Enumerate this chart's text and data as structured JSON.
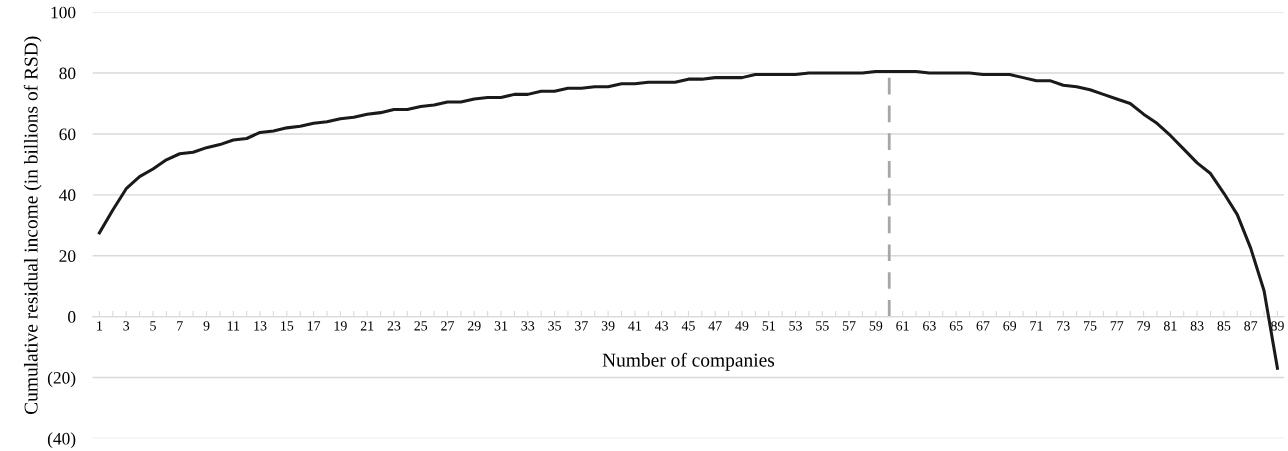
{
  "chart_data": {
    "type": "line",
    "xlabel": "Number of companies",
    "ylabel": "Cumulative residual income (in billions of RSD)",
    "x": [
      1,
      2,
      3,
      4,
      5,
      6,
      7,
      8,
      9,
      10,
      11,
      12,
      13,
      14,
      15,
      16,
      17,
      18,
      19,
      20,
      21,
      22,
      23,
      24,
      25,
      26,
      27,
      28,
      29,
      30,
      31,
      32,
      33,
      34,
      35,
      36,
      37,
      38,
      39,
      40,
      41,
      42,
      43,
      44,
      45,
      46,
      47,
      48,
      49,
      50,
      51,
      52,
      53,
      54,
      55,
      56,
      57,
      58,
      59,
      60,
      61,
      62,
      63,
      64,
      65,
      66,
      67,
      68,
      69,
      70,
      71,
      72,
      73,
      74,
      75,
      76,
      77,
      78,
      79,
      80,
      81,
      82,
      83,
      84,
      85,
      86,
      87,
      88,
      89
    ],
    "series": [
      {
        "color": "#1a1a1a",
        "values": [
          27.5,
          35,
          42,
          46,
          48.5,
          51.5,
          53.5,
          54,
          55.5,
          56.5,
          58,
          58.5,
          60.5,
          61,
          62,
          62.5,
          63.5,
          64,
          65,
          65.5,
          66.5,
          67,
          68,
          68,
          69,
          69.5,
          70.5,
          70.5,
          71.5,
          72,
          72,
          73,
          73,
          74,
          74,
          75,
          75,
          75.5,
          75.5,
          76.5,
          76.5,
          77,
          77,
          77,
          78,
          78,
          78.5,
          78.5,
          78.5,
          79.5,
          79.5,
          79.5,
          79.5,
          80,
          80,
          80,
          80,
          80,
          80.5,
          80.5,
          80.5,
          80.5,
          80,
          80,
          80,
          80,
          79.5,
          79.5,
          79.5,
          78.5,
          77.5,
          77.5,
          76,
          75.5,
          74.5,
          73,
          71.5,
          70,
          66.5,
          63.5,
          59.5,
          55,
          50.5,
          47,
          40.5,
          33.5,
          22.5,
          8.5,
          -17
        ]
      }
    ],
    "xlim": [
      0.5,
      89.5
    ],
    "xticks": [
      1,
      {
        "value": 2,
        "label": null
      },
      3,
      {
        "value": 4,
        "label": null
      },
      5,
      {
        "value": 6,
        "label": null
      },
      7,
      {
        "value": 8,
        "label": null
      },
      9,
      {
        "value": 10,
        "label": null
      },
      11,
      {
        "value": 12,
        "label": null
      },
      13,
      {
        "value": 14,
        "label": null
      },
      15,
      {
        "value": 16,
        "label": null
      },
      17,
      {
        "value": 18,
        "label": null
      },
      19,
      {
        "value": 20,
        "label": null
      },
      21,
      {
        "value": 22,
        "label": null
      },
      23,
      {
        "value": 24,
        "label": null
      },
      25,
      {
        "value": 26,
        "label": null
      },
      27,
      {
        "value": 28,
        "label": null
      },
      29,
      {
        "value": 30,
        "label": null
      },
      31,
      {
        "value": 32,
        "label": null
      },
      33,
      {
        "value": 34,
        "label": null
      },
      35,
      {
        "value": 36,
        "label": null
      },
      37,
      {
        "value": 38,
        "label": null
      },
      39,
      {
        "value": 40,
        "label": null
      },
      41,
      {
        "value": 42,
        "label": null
      },
      43,
      {
        "value": 44,
        "label": null
      },
      45,
      {
        "value": 46,
        "label": null
      },
      47,
      {
        "value": 48,
        "label": null
      },
      49,
      {
        "value": 50,
        "label": null
      },
      51,
      {
        "value": 52,
        "label": null
      },
      53,
      {
        "value": 54,
        "label": null
      },
      55,
      {
        "value": 56,
        "label": null
      },
      57,
      {
        "value": 58,
        "label": null
      },
      59,
      {
        "value": 60,
        "label": null
      },
      61,
      {
        "value": 62,
        "label": null
      },
      63,
      {
        "value": 64,
        "label": null
      },
      65,
      {
        "value": 66,
        "label": null
      },
      67,
      {
        "value": 68,
        "label": null
      },
      69,
      {
        "value": 70,
        "label": null
      },
      71,
      {
        "value": 72,
        "label": null
      },
      73,
      {
        "value": 74,
        "label": null
      },
      75,
      {
        "value": 76,
        "label": null
      },
      77,
      {
        "value": 78,
        "label": null
      },
      79,
      {
        "value": 80,
        "label": null
      },
      81,
      {
        "value": 82,
        "label": null
      },
      83,
      {
        "value": 84,
        "label": null
      },
      85,
      {
        "value": 86,
        "label": null
      },
      87,
      {
        "value": 88,
        "label": null
      },
      89
    ],
    "ylim": [
      -40,
      100
    ],
    "yticks": [
      {
        "value": -40,
        "label": "(40)"
      },
      {
        "value": -20,
        "label": "(20)"
      },
      0,
      20,
      40,
      60,
      80,
      100
    ],
    "grid": "y",
    "marker": "none",
    "line_style": "solid",
    "ref_lines": [
      {
        "axis": "x",
        "value": 60,
        "color": "#a6a6a6",
        "line_style": "dashed"
      }
    ]
  }
}
